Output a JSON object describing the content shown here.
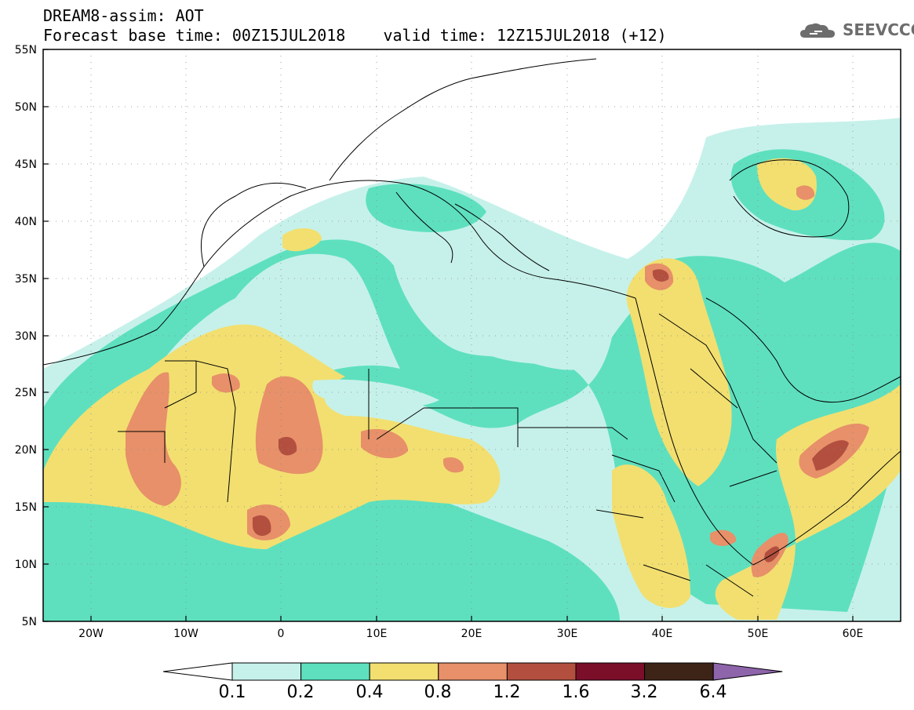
{
  "header": {
    "title": "DREAM8-assim: AOT",
    "subtitle": "Forecast base time: 00Z15JUL2018    valid time: 12Z15JUL2018 (+12)",
    "logo_text": "SEEVCCC"
  },
  "axes": {
    "lat_labels": [
      "55N",
      "50N",
      "45N",
      "40N",
      "35N",
      "30N",
      "25N",
      "20N",
      "15N",
      "10N",
      "5N"
    ],
    "lon_labels": [
      "20W",
      "10W",
      "0",
      "10E",
      "20E",
      "30E",
      "40E",
      "50E",
      "60E"
    ],
    "lat_range": [
      5,
      55
    ],
    "lon_range": [
      -25,
      65
    ]
  },
  "colorbar": {
    "labels": [
      "0.1",
      "0.2",
      "0.4",
      "0.8",
      "1.2",
      "1.6",
      "3.2",
      "6.4"
    ],
    "colors": [
      "#ffffff",
      "#c6f1ea",
      "#5ee0bf",
      "#f2df70",
      "#e79069",
      "#b24f3f",
      "#7b0f2a",
      "#3e2317",
      "#8e64ab"
    ]
  },
  "legend_variable": "AOT"
}
